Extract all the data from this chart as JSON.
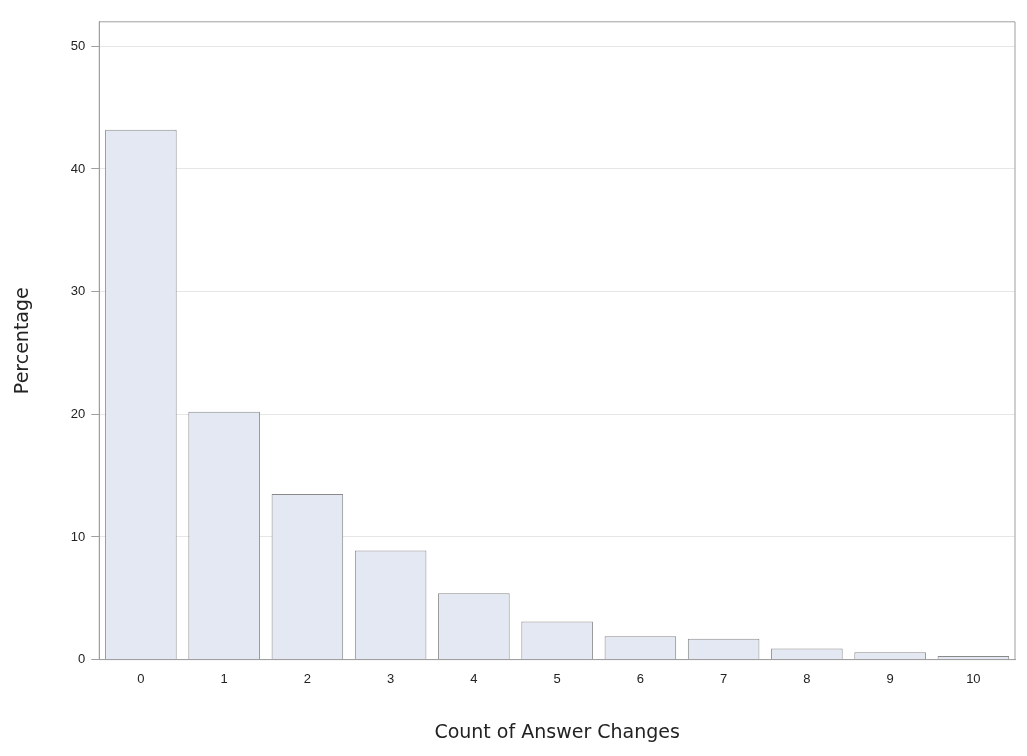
{
  "chart_data": {
    "type": "bar",
    "xlabel": "Count of Answer Changes",
    "ylabel": "Percentage",
    "categories": [
      "0",
      "1",
      "2",
      "3",
      "4",
      "5",
      "6",
      "7",
      "8",
      "9",
      "10"
    ],
    "values": [
      43.2,
      20.2,
      13.5,
      8.9,
      5.4,
      3.1,
      1.9,
      1.7,
      0.9,
      0.6,
      0.3
    ],
    "color": "#e3e8f2",
    "ylim": [
      0,
      52
    ],
    "yticks": [
      0,
      10,
      20,
      30,
      40,
      50
    ],
    "grid": "y",
    "legend": false
  }
}
